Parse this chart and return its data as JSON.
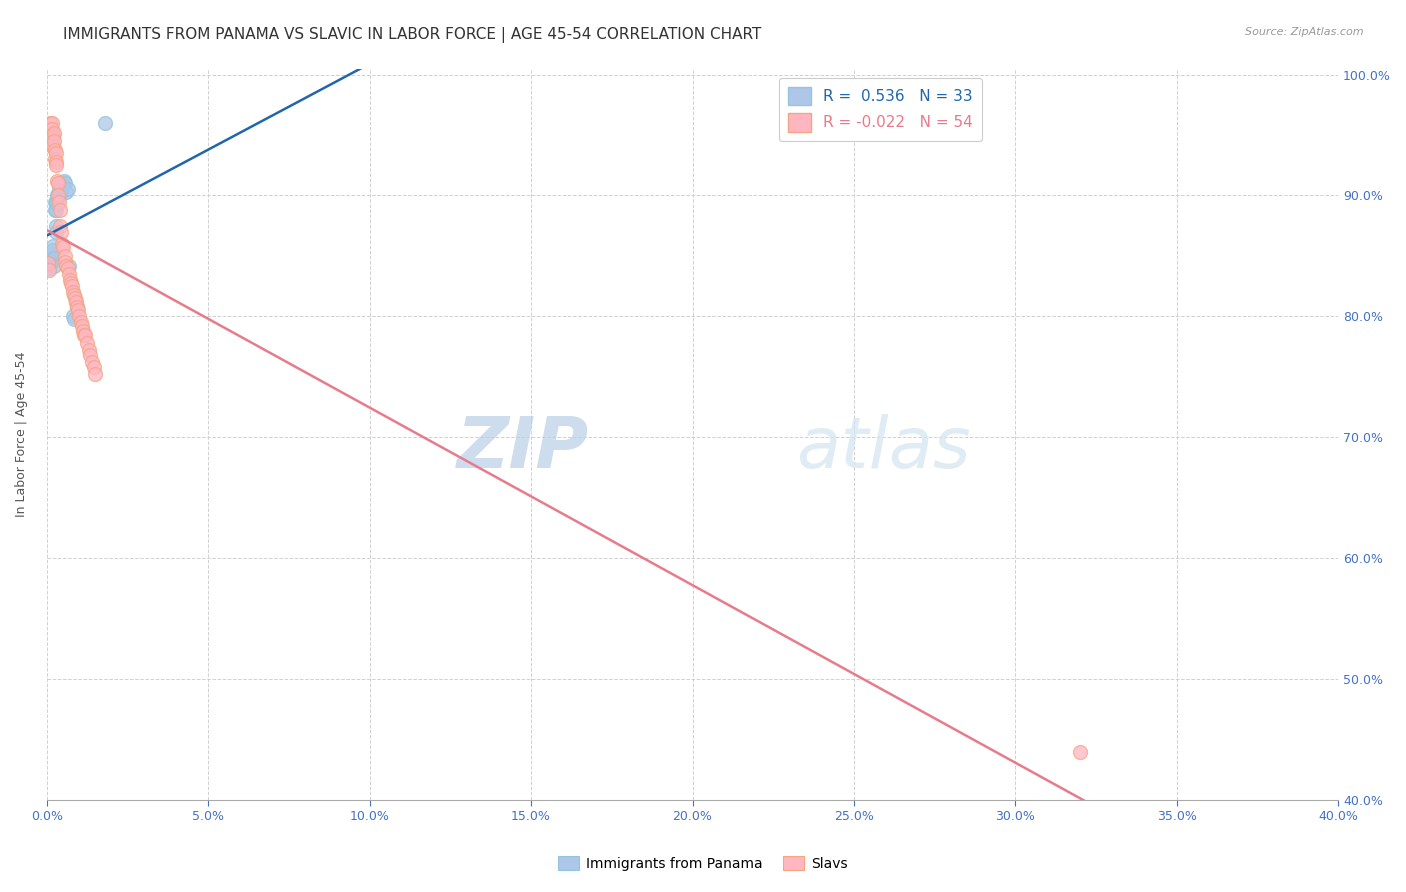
{
  "title": "IMMIGRANTS FROM PANAMA VS SLAVIC IN LABOR FORCE | AGE 45-54 CORRELATION CHART",
  "source": "Source: ZipAtlas.com",
  "ylabel_label": "In Labor Force | Age 45-54",
  "legend_labels": [
    "Immigrants from Panama",
    "Slavs"
  ],
  "legend_r_panama": "R =  0.536",
  "legend_n_panama": "N = 33",
  "legend_r_slavs": "R = -0.022",
  "legend_n_slavs": "N = 54",
  "color_panama": "#92c5de",
  "color_slavs": "#f4a582",
  "color_panama_fill": "#aec7e8",
  "color_slavs_fill": "#ffb6c1",
  "color_panama_line": "#2166ac",
  "color_slavs_line": "#e87b8a",
  "watermark_zip": "ZIP",
  "watermark_atlas": "atlas",
  "xmin": 0.0,
  "xmax": 0.4,
  "ymin": 0.4,
  "ymax": 1.005,
  "x_ticks": [
    0.0,
    0.05,
    0.1,
    0.15,
    0.2,
    0.25,
    0.3,
    0.35,
    0.4
  ],
  "y_ticks": [
    0.4,
    0.5,
    0.6,
    0.7,
    0.8,
    0.9,
    1.0
  ],
  "grid_color": "#cccccc",
  "background_color": "#ffffff",
  "title_fontsize": 11,
  "axis_label_fontsize": 9,
  "tick_fontsize": 9,
  "watermark_fontsize_zip": 52,
  "watermark_fontsize_atlas": 52,
  "panama_x": [
    0.0008,
    0.001,
    0.0012,
    0.0015,
    0.0015,
    0.0018,
    0.002,
    0.0022,
    0.0022,
    0.0025,
    0.0025,
    0.0028,
    0.0028,
    0.003,
    0.003,
    0.0032,
    0.0032,
    0.0035,
    0.0038,
    0.004,
    0.0042,
    0.0045,
    0.0048,
    0.0052,
    0.0055,
    0.006,
    0.0065,
    0.007,
    0.008,
    0.0085,
    0.009,
    0.0095,
    0.018
  ],
  "panama_y": [
    0.84,
    0.844,
    0.848,
    0.852,
    0.845,
    0.858,
    0.855,
    0.848,
    0.842,
    0.895,
    0.888,
    0.875,
    0.87,
    0.895,
    0.888,
    0.9,
    0.893,
    0.9,
    0.905,
    0.91,
    0.9,
    0.903,
    0.908,
    0.912,
    0.91,
    0.903,
    0.905,
    0.842,
    0.8,
    0.798,
    0.812,
    0.808,
    0.96
  ],
  "slavs_x": [
    0.0005,
    0.0008,
    0.001,
    0.001,
    0.0012,
    0.0015,
    0.0015,
    0.0018,
    0.0018,
    0.002,
    0.002,
    0.0022,
    0.0022,
    0.0025,
    0.0025,
    0.0028,
    0.0028,
    0.003,
    0.0032,
    0.0035,
    0.0035,
    0.0038,
    0.004,
    0.0042,
    0.0045,
    0.0048,
    0.005,
    0.0055,
    0.0058,
    0.006,
    0.0065,
    0.0068,
    0.0072,
    0.0075,
    0.0078,
    0.008,
    0.0085,
    0.0088,
    0.0092,
    0.0095,
    0.0098,
    0.01,
    0.0105,
    0.0108,
    0.0112,
    0.0115,
    0.012,
    0.0125,
    0.013,
    0.0135,
    0.014,
    0.0145,
    0.015,
    0.32
  ],
  "slavs_y": [
    0.844,
    0.838,
    0.96,
    0.955,
    0.95,
    0.96,
    0.955,
    0.95,
    0.94,
    0.948,
    0.942,
    0.952,
    0.945,
    0.938,
    0.93,
    0.935,
    0.928,
    0.925,
    0.912,
    0.91,
    0.9,
    0.895,
    0.888,
    0.875,
    0.87,
    0.86,
    0.857,
    0.85,
    0.845,
    0.842,
    0.84,
    0.835,
    0.83,
    0.828,
    0.825,
    0.82,
    0.818,
    0.815,
    0.812,
    0.808,
    0.805,
    0.8,
    0.795,
    0.792,
    0.788,
    0.785,
    0.785,
    0.778,
    0.772,
    0.768,
    0.762,
    0.758,
    0.752,
    0.44
  ]
}
